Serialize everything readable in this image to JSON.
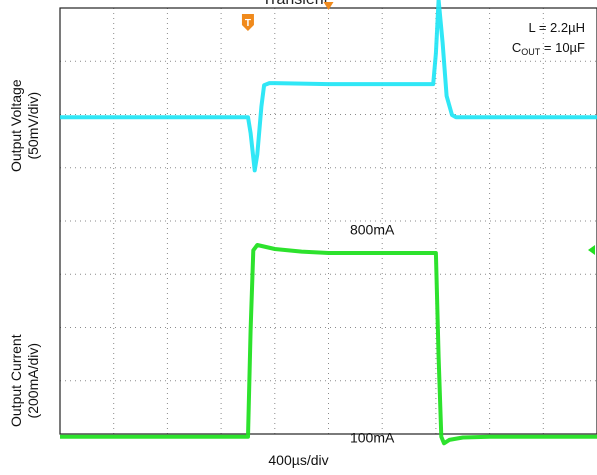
{
  "title": "Transient",
  "chart_data": [
    {
      "type": "line",
      "name": "output-voltage-trace",
      "ylabel_lines": [
        "Output Voltage",
        "(50mV/div)"
      ],
      "xlabel": "400µs/div",
      "x_units": "µs",
      "y_units": "mV",
      "xlim": [
        0,
        4000
      ],
      "grid": true,
      "color": "#19e4f5",
      "x": [
        0,
        1400,
        1420,
        1450,
        1470,
        1500,
        1520,
        1560,
        1600,
        2000,
        2400,
        2780,
        2800,
        2820,
        2850,
        2880,
        2920,
        2950,
        4000
      ],
      "y": [
        0,
        0,
        -15,
        -50,
        -35,
        10,
        30,
        32,
        32,
        31,
        31,
        31,
        60,
        110,
        70,
        20,
        2,
        0,
        0
      ]
    },
    {
      "type": "line",
      "name": "output-current-trace",
      "ylabel_lines": [
        "Output Current",
        "(200mA/div)"
      ],
      "xlabel": "400µs/div",
      "x_units": "µs",
      "y_units": "mA",
      "xlim": [
        0,
        4000
      ],
      "grid": true,
      "color": "#22e022",
      "x": [
        0,
        1400,
        1420,
        1440,
        1470,
        1600,
        1800,
        2000,
        2400,
        2800,
        2820,
        2840,
        2860,
        2900,
        3000,
        3200,
        4000
      ],
      "y": [
        100,
        100,
        500,
        800,
        820,
        805,
        795,
        790,
        790,
        790,
        400,
        100,
        75,
        88,
        97,
        100,
        100
      ],
      "annotations": [
        {
          "text": "800mA",
          "x": 2160,
          "y": 860
        },
        {
          "text": "100mA",
          "x": 2160,
          "y": 100
        }
      ]
    }
  ],
  "legend_box": {
    "inductance": "L = 2.2µH",
    "cout_prefix": "C",
    "cout_subscript": "OUT",
    "cout_value": " = 10µF"
  },
  "markers": {
    "trigger": "T"
  },
  "colors": {
    "voltage": "#19e4f5",
    "current": "#22e022",
    "trigger": "#f08a1c",
    "grid": "#8a8a8a"
  }
}
